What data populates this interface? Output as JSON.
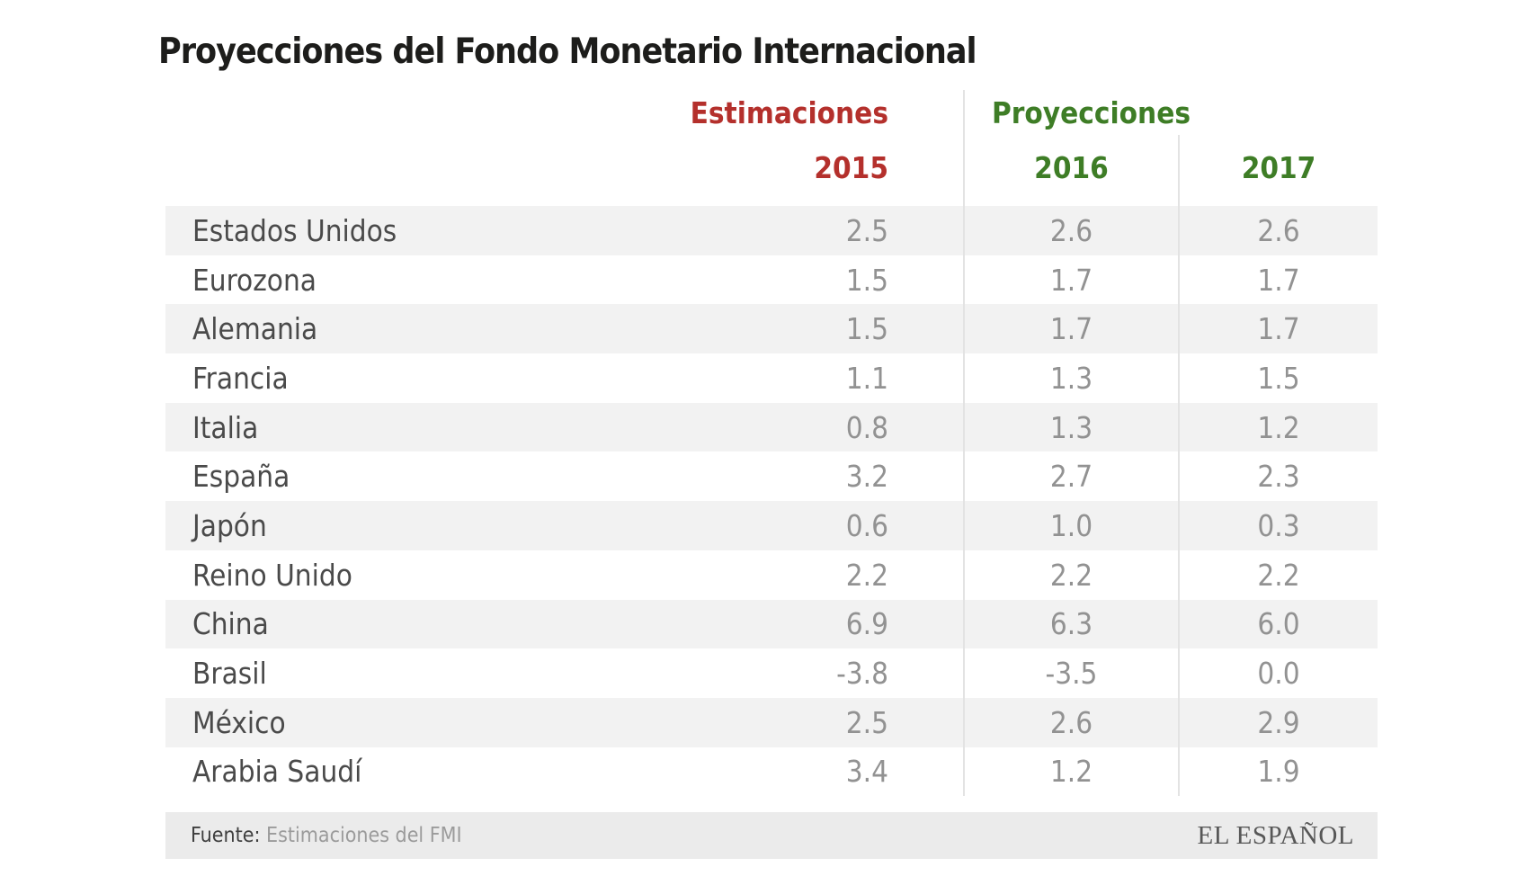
{
  "title": "Proyecciones del Fondo Monetario Internacional",
  "colors": {
    "estimaciones_red": "#b4302c",
    "proyecciones_green": "#3e7d26",
    "row_stripe": "#f2f2f2",
    "divider": "#e3e3e3",
    "footer_bg": "#ebebeb",
    "country_text": "#4a4a4a",
    "value_text": "#929292"
  },
  "table": {
    "group_headers": [
      {
        "label": "Estimaciones"
      },
      {
        "label": "Proyecciones"
      }
    ],
    "year_headers": [
      "2015",
      "2016",
      "2017"
    ],
    "rows": [
      {
        "country": "Estados Unidos",
        "v2015": "2.5",
        "v2016": "2.6",
        "v2017": "2.6"
      },
      {
        "country": "Eurozona",
        "v2015": "1.5",
        "v2016": "1.7",
        "v2017": "1.7"
      },
      {
        "country": "Alemania",
        "v2015": "1.5",
        "v2016": "1.7",
        "v2017": "1.7"
      },
      {
        "country": "Francia",
        "v2015": "1.1",
        "v2016": "1.3",
        "v2017": "1.5"
      },
      {
        "country": "Italia",
        "v2015": "0.8",
        "v2016": "1.3",
        "v2017": "1.2"
      },
      {
        "country": "España",
        "v2015": "3.2",
        "v2016": "2.7",
        "v2017": "2.3"
      },
      {
        "country": "Japón",
        "v2015": "0.6",
        "v2016": "1.0",
        "v2017": "0.3"
      },
      {
        "country": "Reino Unido",
        "v2015": "2.2",
        "v2016": "2.2",
        "v2017": "2.2"
      },
      {
        "country": "China",
        "v2015": "6.9",
        "v2016": "6.3",
        "v2017": "6.0"
      },
      {
        "country": "Brasil",
        "v2015": "-3.8",
        "v2016": "-3.5",
        "v2017": "0.0"
      },
      {
        "country": "México",
        "v2015": "2.5",
        "v2016": "2.6",
        "v2017": "2.9"
      },
      {
        "country": "Arabia Saudí",
        "v2015": "3.4",
        "v2016": "1.2",
        "v2017": "1.9"
      }
    ]
  },
  "footer": {
    "source_label": "Fuente:",
    "source_value": "Estimaciones del FMI",
    "brand": "EL ESPAÑOL"
  },
  "chart_data": {
    "type": "table",
    "title": "Proyecciones del Fondo Monetario Internacional",
    "categories": [
      "Estados Unidos",
      "Eurozona",
      "Alemania",
      "Francia",
      "Italia",
      "España",
      "Japón",
      "Reino Unido",
      "China",
      "Brasil",
      "México",
      "Arabia Saudí"
    ],
    "series": [
      {
        "name": "2015 (Estimaciones)",
        "values": [
          2.5,
          1.5,
          1.5,
          1.1,
          0.8,
          3.2,
          0.6,
          2.2,
          6.9,
          -3.8,
          2.5,
          3.4
        ]
      },
      {
        "name": "2016 (Proyecciones)",
        "values": [
          2.6,
          1.7,
          1.7,
          1.3,
          1.3,
          2.7,
          1.0,
          2.2,
          6.3,
          -3.5,
          2.6,
          1.2
        ]
      },
      {
        "name": "2017 (Proyecciones)",
        "values": [
          2.6,
          1.7,
          1.7,
          1.5,
          1.2,
          2.3,
          0.3,
          2.2,
          6.0,
          0.0,
          2.9,
          1.9
        ]
      }
    ],
    "source": "Fuente: Estimaciones del FMI"
  }
}
